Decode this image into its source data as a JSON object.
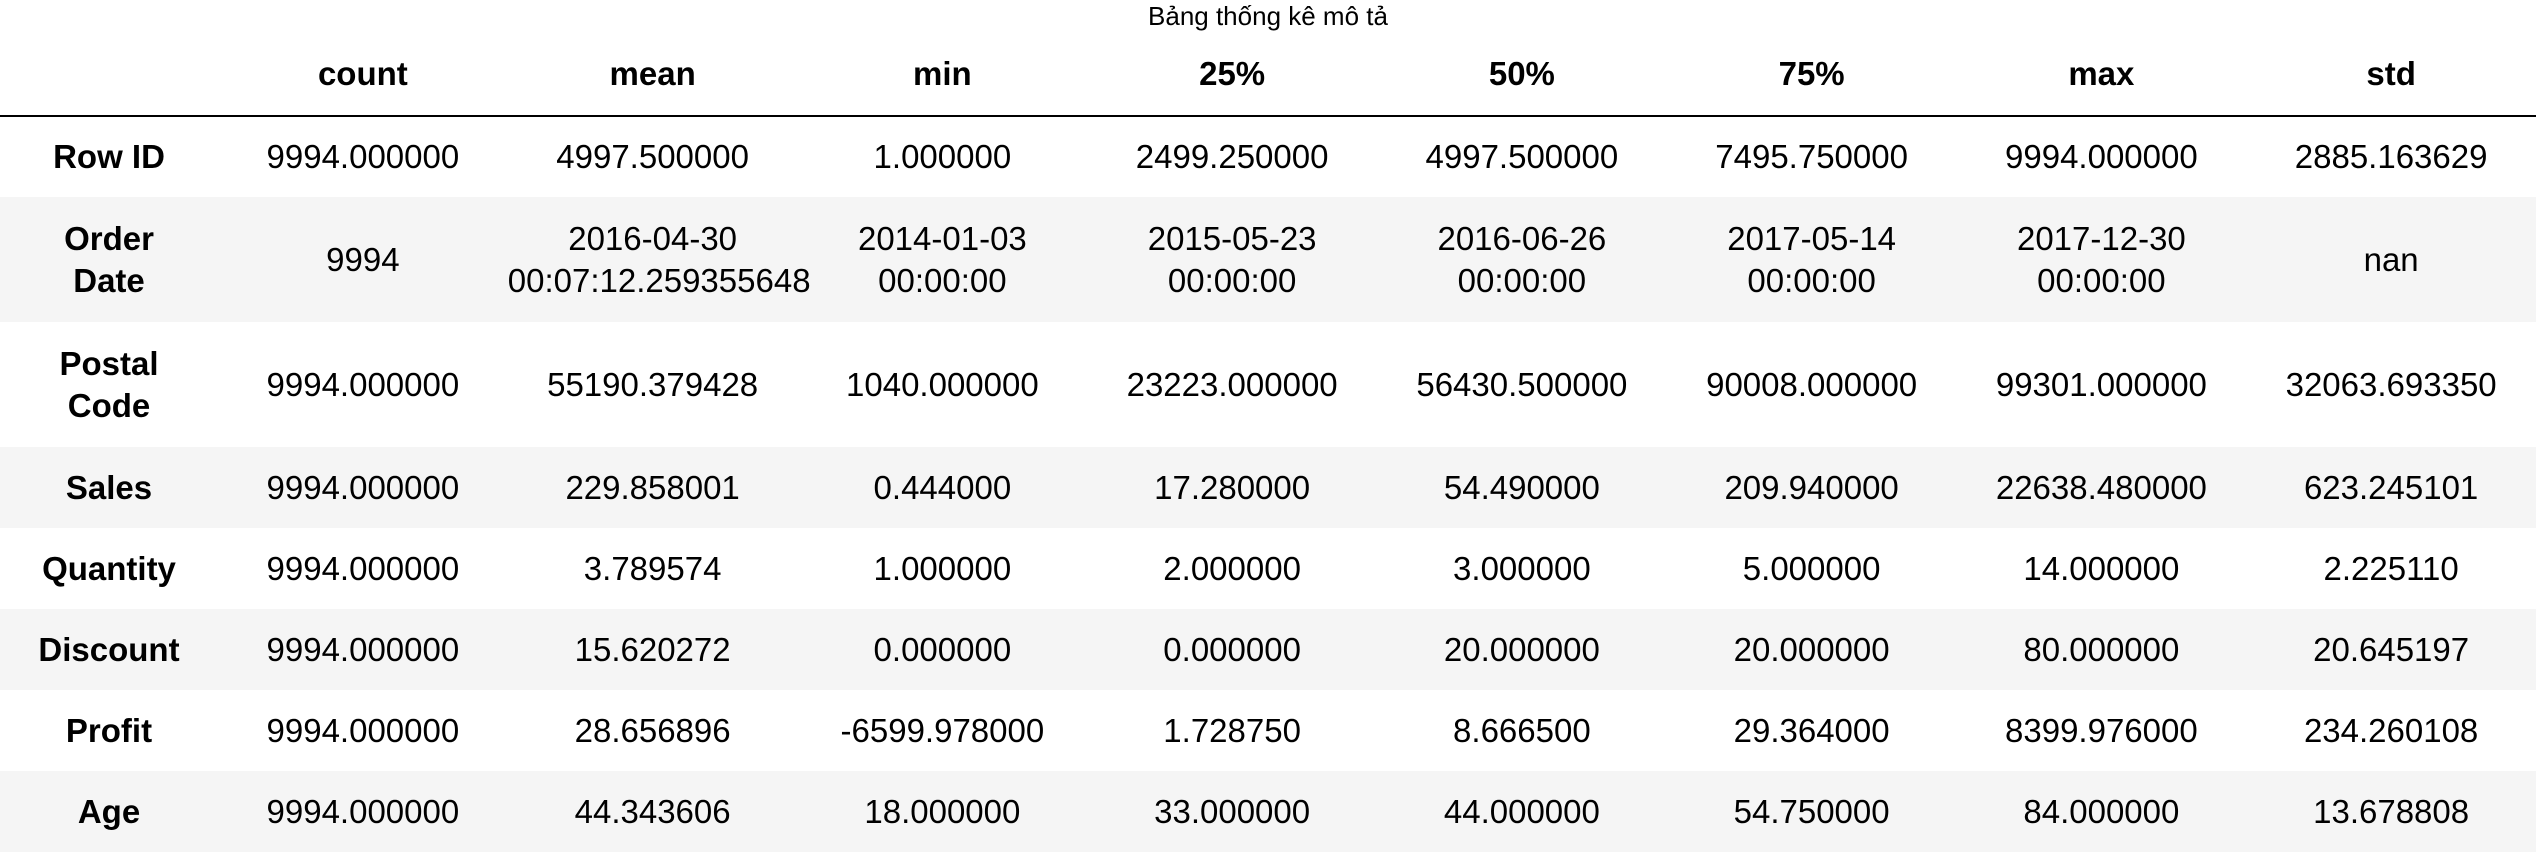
{
  "caption": "Bảng thống kê mô tả",
  "table": {
    "corner": "",
    "columns": [
      "count",
      "mean",
      "min",
      "25%",
      "50%",
      "75%",
      "max",
      "std"
    ],
    "rows": [
      {
        "label": [
          "Row ID"
        ],
        "cells": [
          [
            "9994.000000"
          ],
          [
            "4997.500000"
          ],
          [
            "1.000000"
          ],
          [
            "2499.250000"
          ],
          [
            "4997.500000"
          ],
          [
            "7495.750000"
          ],
          [
            "9994.000000"
          ],
          [
            "2885.163629"
          ]
        ]
      },
      {
        "label": [
          "Order",
          "Date"
        ],
        "cells": [
          [
            "9994"
          ],
          [
            "2016-04-30",
            "00:07:12.259355648"
          ],
          [
            "2014-01-03",
            "00:00:00"
          ],
          [
            "2015-05-23",
            "00:00:00"
          ],
          [
            "2016-06-26",
            "00:00:00"
          ],
          [
            "2017-05-14",
            "00:00:00"
          ],
          [
            "2017-12-30",
            "00:00:00"
          ],
          [
            "nan"
          ]
        ]
      },
      {
        "label": [
          "Postal",
          "Code"
        ],
        "cells": [
          [
            "9994.000000"
          ],
          [
            "55190.379428"
          ],
          [
            "1040.000000"
          ],
          [
            "23223.000000"
          ],
          [
            "56430.500000"
          ],
          [
            "90008.000000"
          ],
          [
            "99301.000000"
          ],
          [
            "32063.693350"
          ]
        ]
      },
      {
        "label": [
          "Sales"
        ],
        "cells": [
          [
            "9994.000000"
          ],
          [
            "229.858001"
          ],
          [
            "0.444000"
          ],
          [
            "17.280000"
          ],
          [
            "54.490000"
          ],
          [
            "209.940000"
          ],
          [
            "22638.480000"
          ],
          [
            "623.245101"
          ]
        ]
      },
      {
        "label": [
          "Quantity"
        ],
        "cells": [
          [
            "9994.000000"
          ],
          [
            "3.789574"
          ],
          [
            "1.000000"
          ],
          [
            "2.000000"
          ],
          [
            "3.000000"
          ],
          [
            "5.000000"
          ],
          [
            "14.000000"
          ],
          [
            "2.225110"
          ]
        ]
      },
      {
        "label": [
          "Discount"
        ],
        "cells": [
          [
            "9994.000000"
          ],
          [
            "15.620272"
          ],
          [
            "0.000000"
          ],
          [
            "0.000000"
          ],
          [
            "20.000000"
          ],
          [
            "20.000000"
          ],
          [
            "80.000000"
          ],
          [
            "20.645197"
          ]
        ]
      },
      {
        "label": [
          "Profit"
        ],
        "cells": [
          [
            "9994.000000"
          ],
          [
            "28.656896"
          ],
          [
            "-6599.978000"
          ],
          [
            "1.728750"
          ],
          [
            "8.666500"
          ],
          [
            "29.364000"
          ],
          [
            "8399.976000"
          ],
          [
            "234.260108"
          ]
        ]
      },
      {
        "label": [
          "Age"
        ],
        "cells": [
          [
            "9994.000000"
          ],
          [
            "44.343606"
          ],
          [
            "18.000000"
          ],
          [
            "33.000000"
          ],
          [
            "44.000000"
          ],
          [
            "54.750000"
          ],
          [
            "84.000000"
          ],
          [
            "13.678808"
          ]
        ]
      }
    ]
  },
  "colors": {
    "background": "#ffffff",
    "stripe": "#f5f5f5",
    "text": "#000000",
    "header_rule": "#000000"
  }
}
